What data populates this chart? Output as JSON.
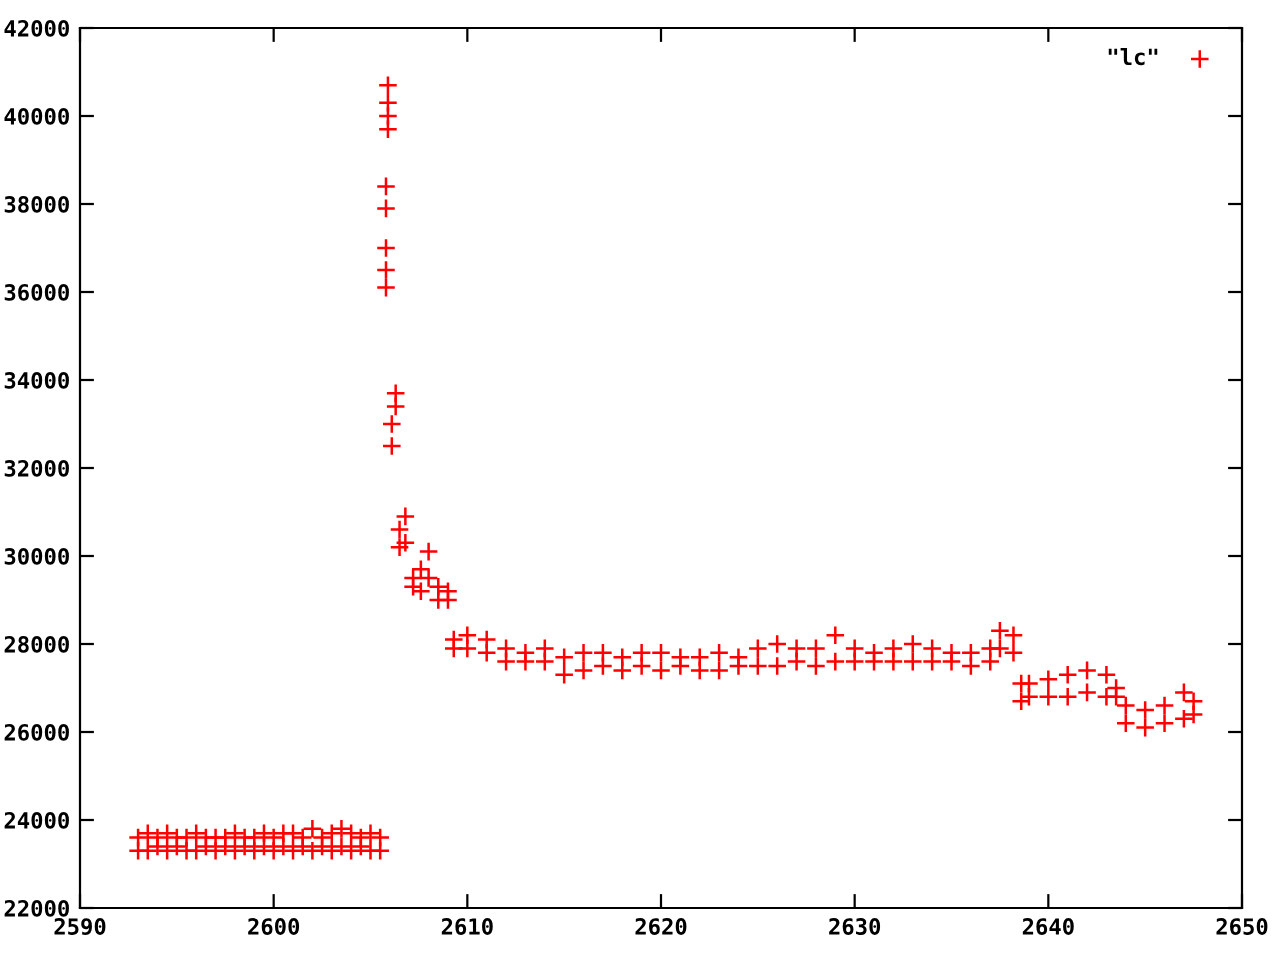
{
  "chart_data": {
    "type": "scatter",
    "marker": "cross",
    "legend": "top right",
    "grid": false,
    "xlim": [
      2590,
      2650
    ],
    "xticks": [
      2590,
      2600,
      2610,
      2620,
      2630,
      2640,
      2650
    ],
    "ylim": [
      22000,
      42000
    ],
    "yticks": [
      22000,
      24000,
      26000,
      28000,
      30000,
      32000,
      34000,
      36000,
      38000,
      40000,
      42000
    ],
    "series": [
      {
        "name": "\"lc\"",
        "color": "#ff0000",
        "x": [
          2593,
          2593,
          2593.5,
          2593.5,
          2594,
          2594,
          2594.5,
          2594.5,
          2595,
          2595,
          2595.5,
          2595.5,
          2596,
          2596,
          2596.5,
          2596.5,
          2597,
          2597,
          2597.5,
          2597.5,
          2598,
          2598,
          2598.5,
          2598.5,
          2599,
          2599,
          2599.5,
          2599.5,
          2600,
          2600,
          2600.5,
          2600.5,
          2601,
          2601,
          2601.5,
          2601.5,
          2602,
          2602,
          2602.5,
          2602.5,
          2603,
          2603,
          2603.5,
          2603.5,
          2604,
          2604,
          2604.5,
          2604.5,
          2605,
          2605,
          2605.5,
          2605.5,
          2605.8,
          2605.8,
          2605.8,
          2605.8,
          2605.8,
          2605.9,
          2605.9,
          2605.9,
          2605.9,
          2606.1,
          2606.1,
          2606.3,
          2606.3,
          2606.5,
          2606.5,
          2606.8,
          2606.8,
          2607.2,
          2607.2,
          2607.6,
          2607.6,
          2608,
          2608,
          2608.5,
          2608.5,
          2609,
          2609,
          2609.3,
          2609.3,
          2610,
          2610,
          2611,
          2611,
          2612,
          2612,
          2613,
          2613,
          2614,
          2614,
          2615,
          2615,
          2616,
          2616,
          2617,
          2617,
          2618,
          2618,
          2619,
          2619,
          2620,
          2620,
          2621,
          2621,
          2622,
          2622,
          2623,
          2623,
          2624,
          2624,
          2625,
          2625,
          2626,
          2626,
          2627,
          2627,
          2628,
          2628,
          2629,
          2629,
          2630,
          2630,
          2631,
          2631,
          2632,
          2632,
          2633,
          2633,
          2634,
          2634,
          2635,
          2635,
          2636,
          2636,
          2637,
          2637,
          2637.5,
          2637.5,
          2638.2,
          2638.2,
          2638.6,
          2638.6,
          2639,
          2639,
          2640,
          2640,
          2641,
          2641,
          2642,
          2642,
          2643,
          2643,
          2643.5,
          2643.5,
          2644,
          2644,
          2645,
          2645,
          2646,
          2646,
          2647,
          2647,
          2647.5,
          2647.5
        ],
        "values": [
          23600,
          23300,
          23700,
          23300,
          23600,
          23400,
          23700,
          23300,
          23600,
          23400,
          23600,
          23300,
          23700,
          23300,
          23600,
          23400,
          23600,
          23300,
          23600,
          23400,
          23700,
          23300,
          23600,
          23400,
          23600,
          23300,
          23700,
          23400,
          23600,
          23300,
          23700,
          23400,
          23700,
          23300,
          23600,
          23400,
          23800,
          23300,
          23600,
          23400,
          23700,
          23300,
          23800,
          23400,
          23700,
          23300,
          23600,
          23400,
          23700,
          23300,
          23600,
          23300,
          36100,
          36500,
          37000,
          37900,
          38400,
          39700,
          40000,
          40300,
          40700,
          32500,
          33000,
          33400,
          33700,
          30200,
          30600,
          30900,
          30300,
          29500,
          29300,
          29700,
          29200,
          30100,
          29500,
          29300,
          29000,
          29200,
          29000,
          28100,
          27900,
          28200,
          27900,
          28100,
          27800,
          27900,
          27600,
          27800,
          27600,
          27900,
          27600,
          27700,
          27300,
          27800,
          27400,
          27800,
          27500,
          27700,
          27400,
          27800,
          27500,
          27800,
          27400,
          27700,
          27500,
          27700,
          27400,
          27800,
          27400,
          27700,
          27500,
          27900,
          27500,
          28000,
          27500,
          27900,
          27600,
          27900,
          27500,
          28200,
          27600,
          27900,
          27600,
          27800,
          27600,
          27900,
          27600,
          28000,
          27600,
          27900,
          27600,
          27800,
          27600,
          27800,
          27500,
          27900,
          27600,
          28300,
          27900,
          28200,
          27800,
          27100,
          26700,
          27100,
          26800,
          27200,
          26800,
          27300,
          26800,
          27400,
          26900,
          27300,
          26800,
          27000,
          26800,
          26600,
          26200,
          26500,
          26100,
          26600,
          26200,
          26900,
          26300,
          26700,
          26400
        ]
      }
    ]
  }
}
